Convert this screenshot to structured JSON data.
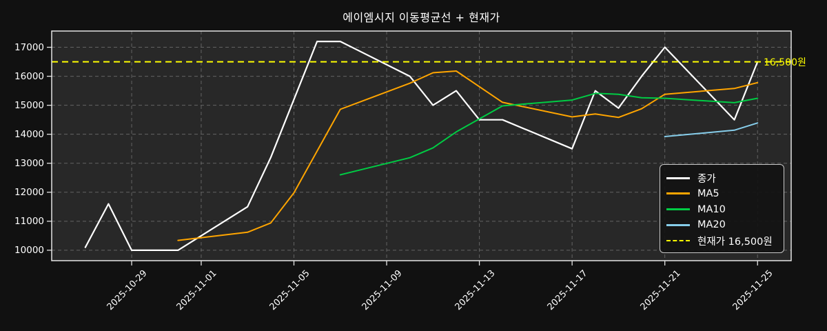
{
  "title": "에이엠시지 이동평균선 + 현재가",
  "chart_data": {
    "type": "line",
    "title": "에이엠시지 이동평균선 + 현재가",
    "xlabel": "",
    "ylabel": "",
    "grid": true,
    "legend_position": "right-center",
    "y_ticks": [
      10000,
      11000,
      12000,
      13000,
      14000,
      15000,
      16000,
      17000
    ],
    "y_domain": [
      9640,
      17560
    ],
    "x_domain_days": [
      -1.45,
      30.45
    ],
    "x_tick_labels": [
      "2025-10-29",
      "2025-11-01",
      "2025-11-05",
      "2025-11-09",
      "2025-11-13",
      "2025-11-17",
      "2025-11-21",
      "2025-11-25"
    ],
    "x_tick_offsets": [
      2,
      5,
      9,
      13,
      17,
      21,
      25,
      29
    ],
    "dates": [
      "2025-10-27",
      "2025-10-28",
      "2025-10-29",
      "2025-10-30",
      "2025-10-31",
      "2025-11-03",
      "2025-11-04",
      "2025-11-05",
      "2025-11-06",
      "2025-11-07",
      "2025-11-10",
      "2025-11-11",
      "2025-11-12",
      "2025-11-13",
      "2025-11-14",
      "2025-11-17",
      "2025-11-18",
      "2025-11-19",
      "2025-11-20",
      "2025-11-21",
      "2025-11-24",
      "2025-11-25"
    ],
    "day_offsets": [
      0,
      1,
      2,
      3,
      4,
      7,
      8,
      9,
      10,
      11,
      14,
      15,
      16,
      17,
      18,
      21,
      22,
      23,
      24,
      25,
      28,
      29
    ],
    "series": [
      {
        "name": "종가",
        "color": "#ffffff",
        "width": 2.2,
        "start_index": 0,
        "values": [
          10100,
          11600,
          10000,
          10000,
          10000,
          11500,
          13200,
          15200,
          17200,
          17200,
          16000,
          15000,
          15500,
          14500,
          14500,
          13500,
          15500,
          14900,
          16000,
          17000,
          14500,
          16500
        ]
      },
      {
        "name": "MA5",
        "color": "#ffa500",
        "width": 2.0,
        "start_index": 4,
        "values": [
          10340,
          10620,
          10940,
          11980,
          13420,
          14860,
          15760,
          16120,
          16180,
          15640,
          15100,
          14600,
          14700,
          14580,
          14880,
          15380,
          15580,
          15780
        ]
      },
      {
        "name": "MA10",
        "color": "#00cc44",
        "width": 2.0,
        "start_index": 9,
        "values": [
          12600,
          13190,
          13530,
          14080,
          14530,
          14980,
          15180,
          15410,
          15380,
          15260,
          15240,
          15090,
          15240
        ]
      },
      {
        "name": "MA20",
        "color": "#87ceeb",
        "width": 2.0,
        "start_index": 19,
        "values": [
          13920,
          14140,
          14390
        ]
      }
    ],
    "hline": {
      "value": 16500,
      "label": "16,500원",
      "color": "#ffff00"
    },
    "legend": [
      {
        "label": "종가",
        "color": "#ffffff",
        "dashed": false
      },
      {
        "label": "MA5",
        "color": "#ffa500",
        "dashed": false
      },
      {
        "label": "MA10",
        "color": "#00cc44",
        "dashed": false
      },
      {
        "label": "MA20",
        "color": "#87ceeb",
        "dashed": false
      },
      {
        "label": "현재가 16,500원",
        "color": "#ffff00",
        "dashed": true
      }
    ]
  },
  "colors": {
    "figure_bg": "#111111",
    "axes_bg": "#282828",
    "grid": "#777777",
    "spine": "#e6e6e6",
    "text": "#ffffff"
  }
}
